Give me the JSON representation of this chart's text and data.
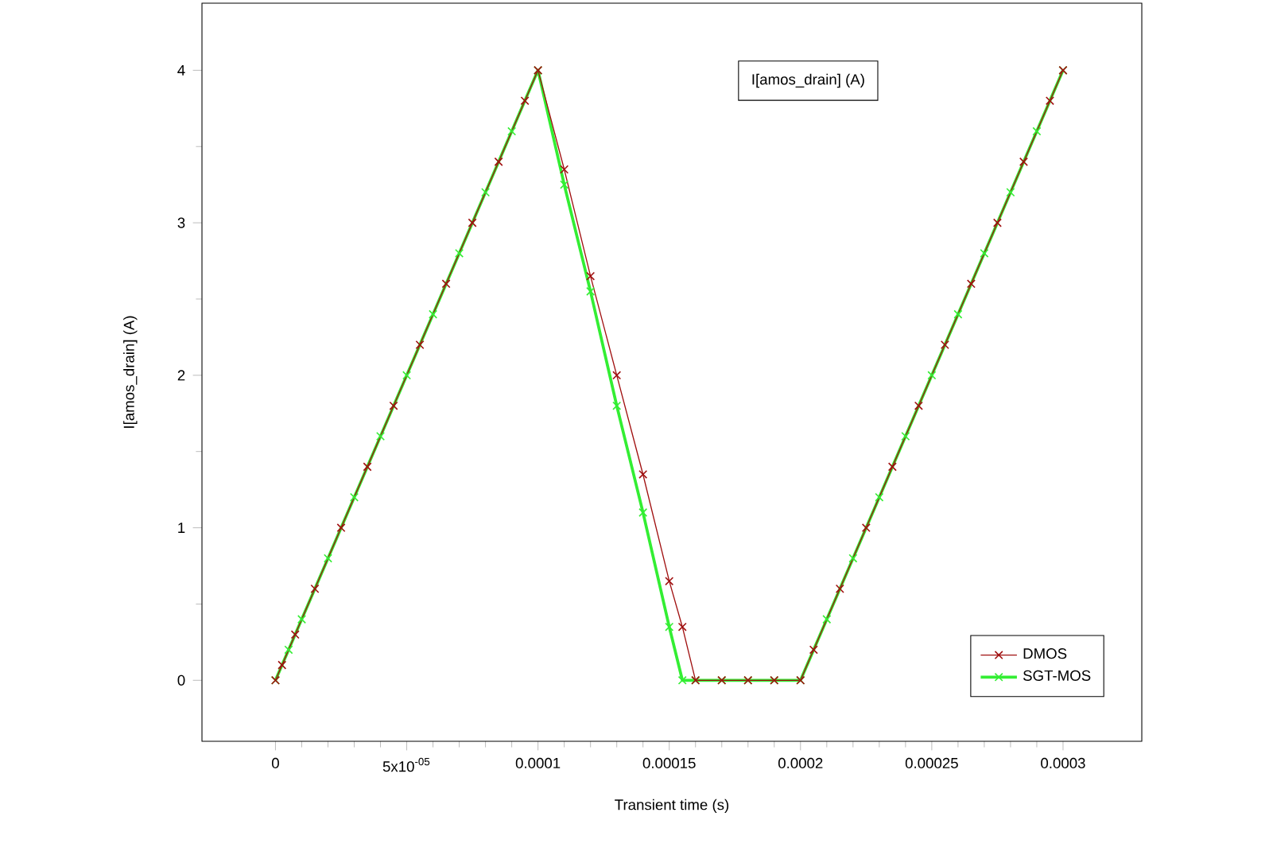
{
  "chart_data": {
    "type": "line",
    "xlabel": "Transient time (s)",
    "ylabel": "I[amos_drain] (A)",
    "annotations": [
      "I[amos_drain] (A)"
    ],
    "xlim": [
      -2.8e-05,
      0.00033
    ],
    "ylim": [
      -0.4,
      4.44
    ],
    "xticks": [
      0,
      {
        "value": 5e-05,
        "label": "5x10$^{-05}$"
      },
      0.0001,
      0.00015,
      0.0002,
      0.00025,
      0.0003
    ],
    "yticks": [
      0,
      1,
      2,
      3,
      4
    ],
    "marker": "cross",
    "legend": "bottom right",
    "grid": false,
    "series": [
      {
        "name": "DMOS",
        "color": "#a01010",
        "x": [
          0,
          2.5e-06,
          7.5e-06,
          1.5e-05,
          2.5e-05,
          3.5e-05,
          4.5e-05,
          5.5e-05,
          6.5e-05,
          7.5e-05,
          8.5e-05,
          9.5e-05,
          0.0001,
          0.00011,
          0.00012,
          0.00013,
          0.00014,
          0.00015,
          0.000155,
          0.00016,
          0.00017,
          0.00018,
          0.00019,
          0.0002,
          0.000205,
          0.000215,
          0.000225,
          0.000235,
          0.000245,
          0.000255,
          0.000265,
          0.000275,
          0.000285,
          0.000295,
          0.0003
        ],
        "values": [
          0,
          0.1,
          0.3,
          0.6,
          1.0,
          1.4,
          1.8,
          2.2,
          2.6,
          3.0,
          3.4,
          3.8,
          4.0,
          3.35,
          2.65,
          2.0,
          1.35,
          0.65,
          0.35,
          0,
          0,
          0,
          0,
          0,
          0.2,
          0.6,
          1.0,
          1.4,
          1.8,
          2.2,
          2.6,
          3.0,
          3.4,
          3.8,
          4.0
        ]
      },
      {
        "name": "SGT-MOS",
        "color": "#33ee33",
        "x": [
          0,
          5e-06,
          1e-05,
          2e-05,
          3e-05,
          4e-05,
          5e-05,
          6e-05,
          7e-05,
          8e-05,
          9e-05,
          0.0001,
          0.00011,
          0.00012,
          0.00013,
          0.00014,
          0.00015,
          0.000155,
          0.00016,
          0.00017,
          0.00018,
          0.00019,
          0.0002,
          0.00021,
          0.00022,
          0.00023,
          0.00024,
          0.00025,
          0.00026,
          0.00027,
          0.00028,
          0.00029,
          0.0003
        ],
        "values": [
          0,
          0.2,
          0.4,
          0.8,
          1.2,
          1.6,
          2.0,
          2.4,
          2.8,
          3.2,
          3.6,
          4.0,
          3.25,
          2.55,
          1.8,
          1.1,
          0.35,
          0,
          0,
          0,
          0,
          0,
          0,
          0.4,
          0.8,
          1.2,
          1.6,
          2.0,
          2.4,
          2.8,
          3.2,
          3.6,
          4.0
        ]
      }
    ]
  }
}
